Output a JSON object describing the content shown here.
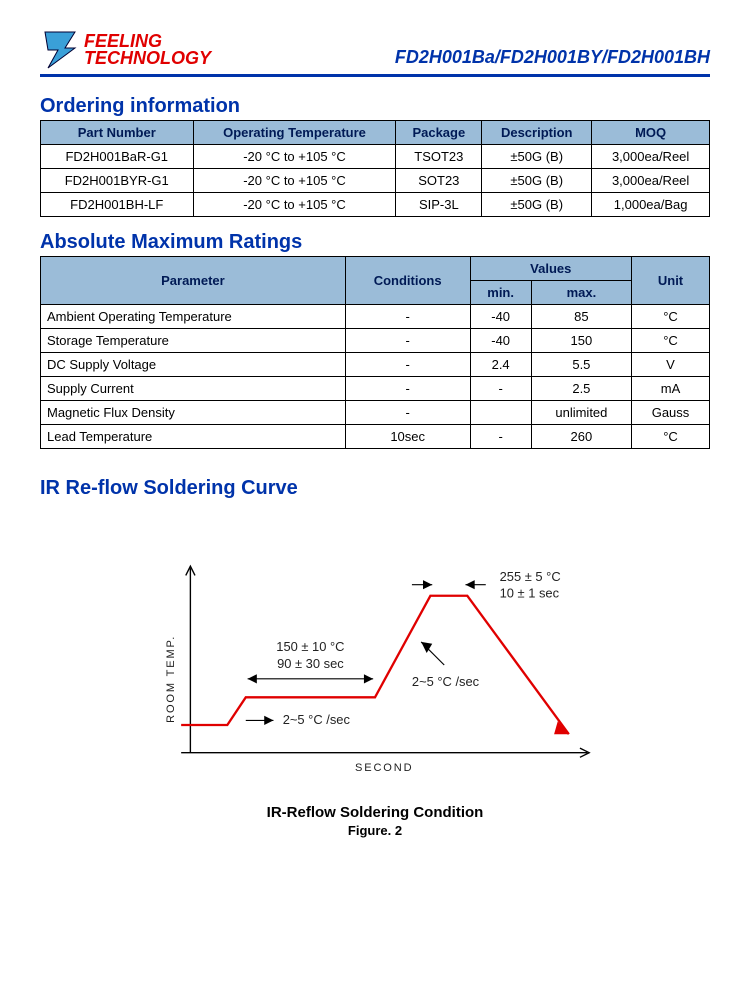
{
  "header": {
    "logo_line1": "FEELING",
    "logo_line2": "TECHNOLOGY",
    "part_header": "FD2H001Ba/FD2H001BY/FD2H001BH"
  },
  "ordering": {
    "title": "Ordering information",
    "columns": [
      "Part Number",
      "Operating Temperature",
      "Package",
      "Description",
      "MOQ"
    ],
    "rows": [
      [
        "FD2H001BaR-G1",
        "-20 °C to +105 °C",
        "TSOT23",
        "±50G (B)",
        "3,000ea/Reel"
      ],
      [
        "FD2H001BYR-G1",
        "-20 °C to +105 °C",
        "SOT23",
        "±50G (B)",
        "3,000ea/Reel"
      ],
      [
        "FD2H001BH-LF",
        "-20 °C to +105 °C",
        "SIP-3L",
        "±50G (B)",
        "1,000ea/Bag"
      ]
    ]
  },
  "ratings": {
    "title": "Absolute Maximum Ratings",
    "columns": [
      "Parameter",
      "Conditions",
      "min.",
      "max.",
      "Unit"
    ],
    "header_group": "Values",
    "rows": [
      [
        "Ambient Operating Temperature",
        "-",
        "-40",
        "85",
        "°C"
      ],
      [
        "Storage Temperature",
        "-",
        "-40",
        "150",
        "°C"
      ],
      [
        "DC Supply Voltage",
        "-",
        "2.4",
        "5.5",
        "V"
      ],
      [
        "Supply Current",
        "-",
        "-",
        "2.5",
        "mA"
      ],
      [
        "Magnetic Flux Density",
        "-",
        "",
        "unlimited",
        "Gauss"
      ],
      [
        "Lead Temperature",
        "10sec",
        "-",
        "260",
        "°C"
      ]
    ]
  },
  "chart": {
    "section_title": "IR Re-flow Soldering Curve",
    "caption": "IR-Reflow Soldering Condition",
    "figure": "Figure. 2",
    "y_axis": "ROOM TEMP.",
    "x_axis": "SECOND",
    "curve_color": "#e00000",
    "axis_color": "#000000",
    "annotations": {
      "preheat_temp": "150 ± 10 °C",
      "preheat_time": "90 ± 30 sec",
      "peak_temp": "255 ± 5 °C",
      "peak_time": "10 ± 1 sec",
      "rise_rate": "2~5 °C /sec",
      "rise_rate2": "2~5 °C /sec"
    },
    "curve_points": [
      [
        50,
        200
      ],
      [
        100,
        200
      ],
      [
        120,
        170
      ],
      [
        260,
        170
      ],
      [
        320,
        60
      ],
      [
        360,
        60
      ],
      [
        470,
        210
      ]
    ],
    "arrow_head": [
      [
        470,
        210
      ],
      [
        458,
        196
      ],
      [
        454,
        210
      ]
    ]
  }
}
